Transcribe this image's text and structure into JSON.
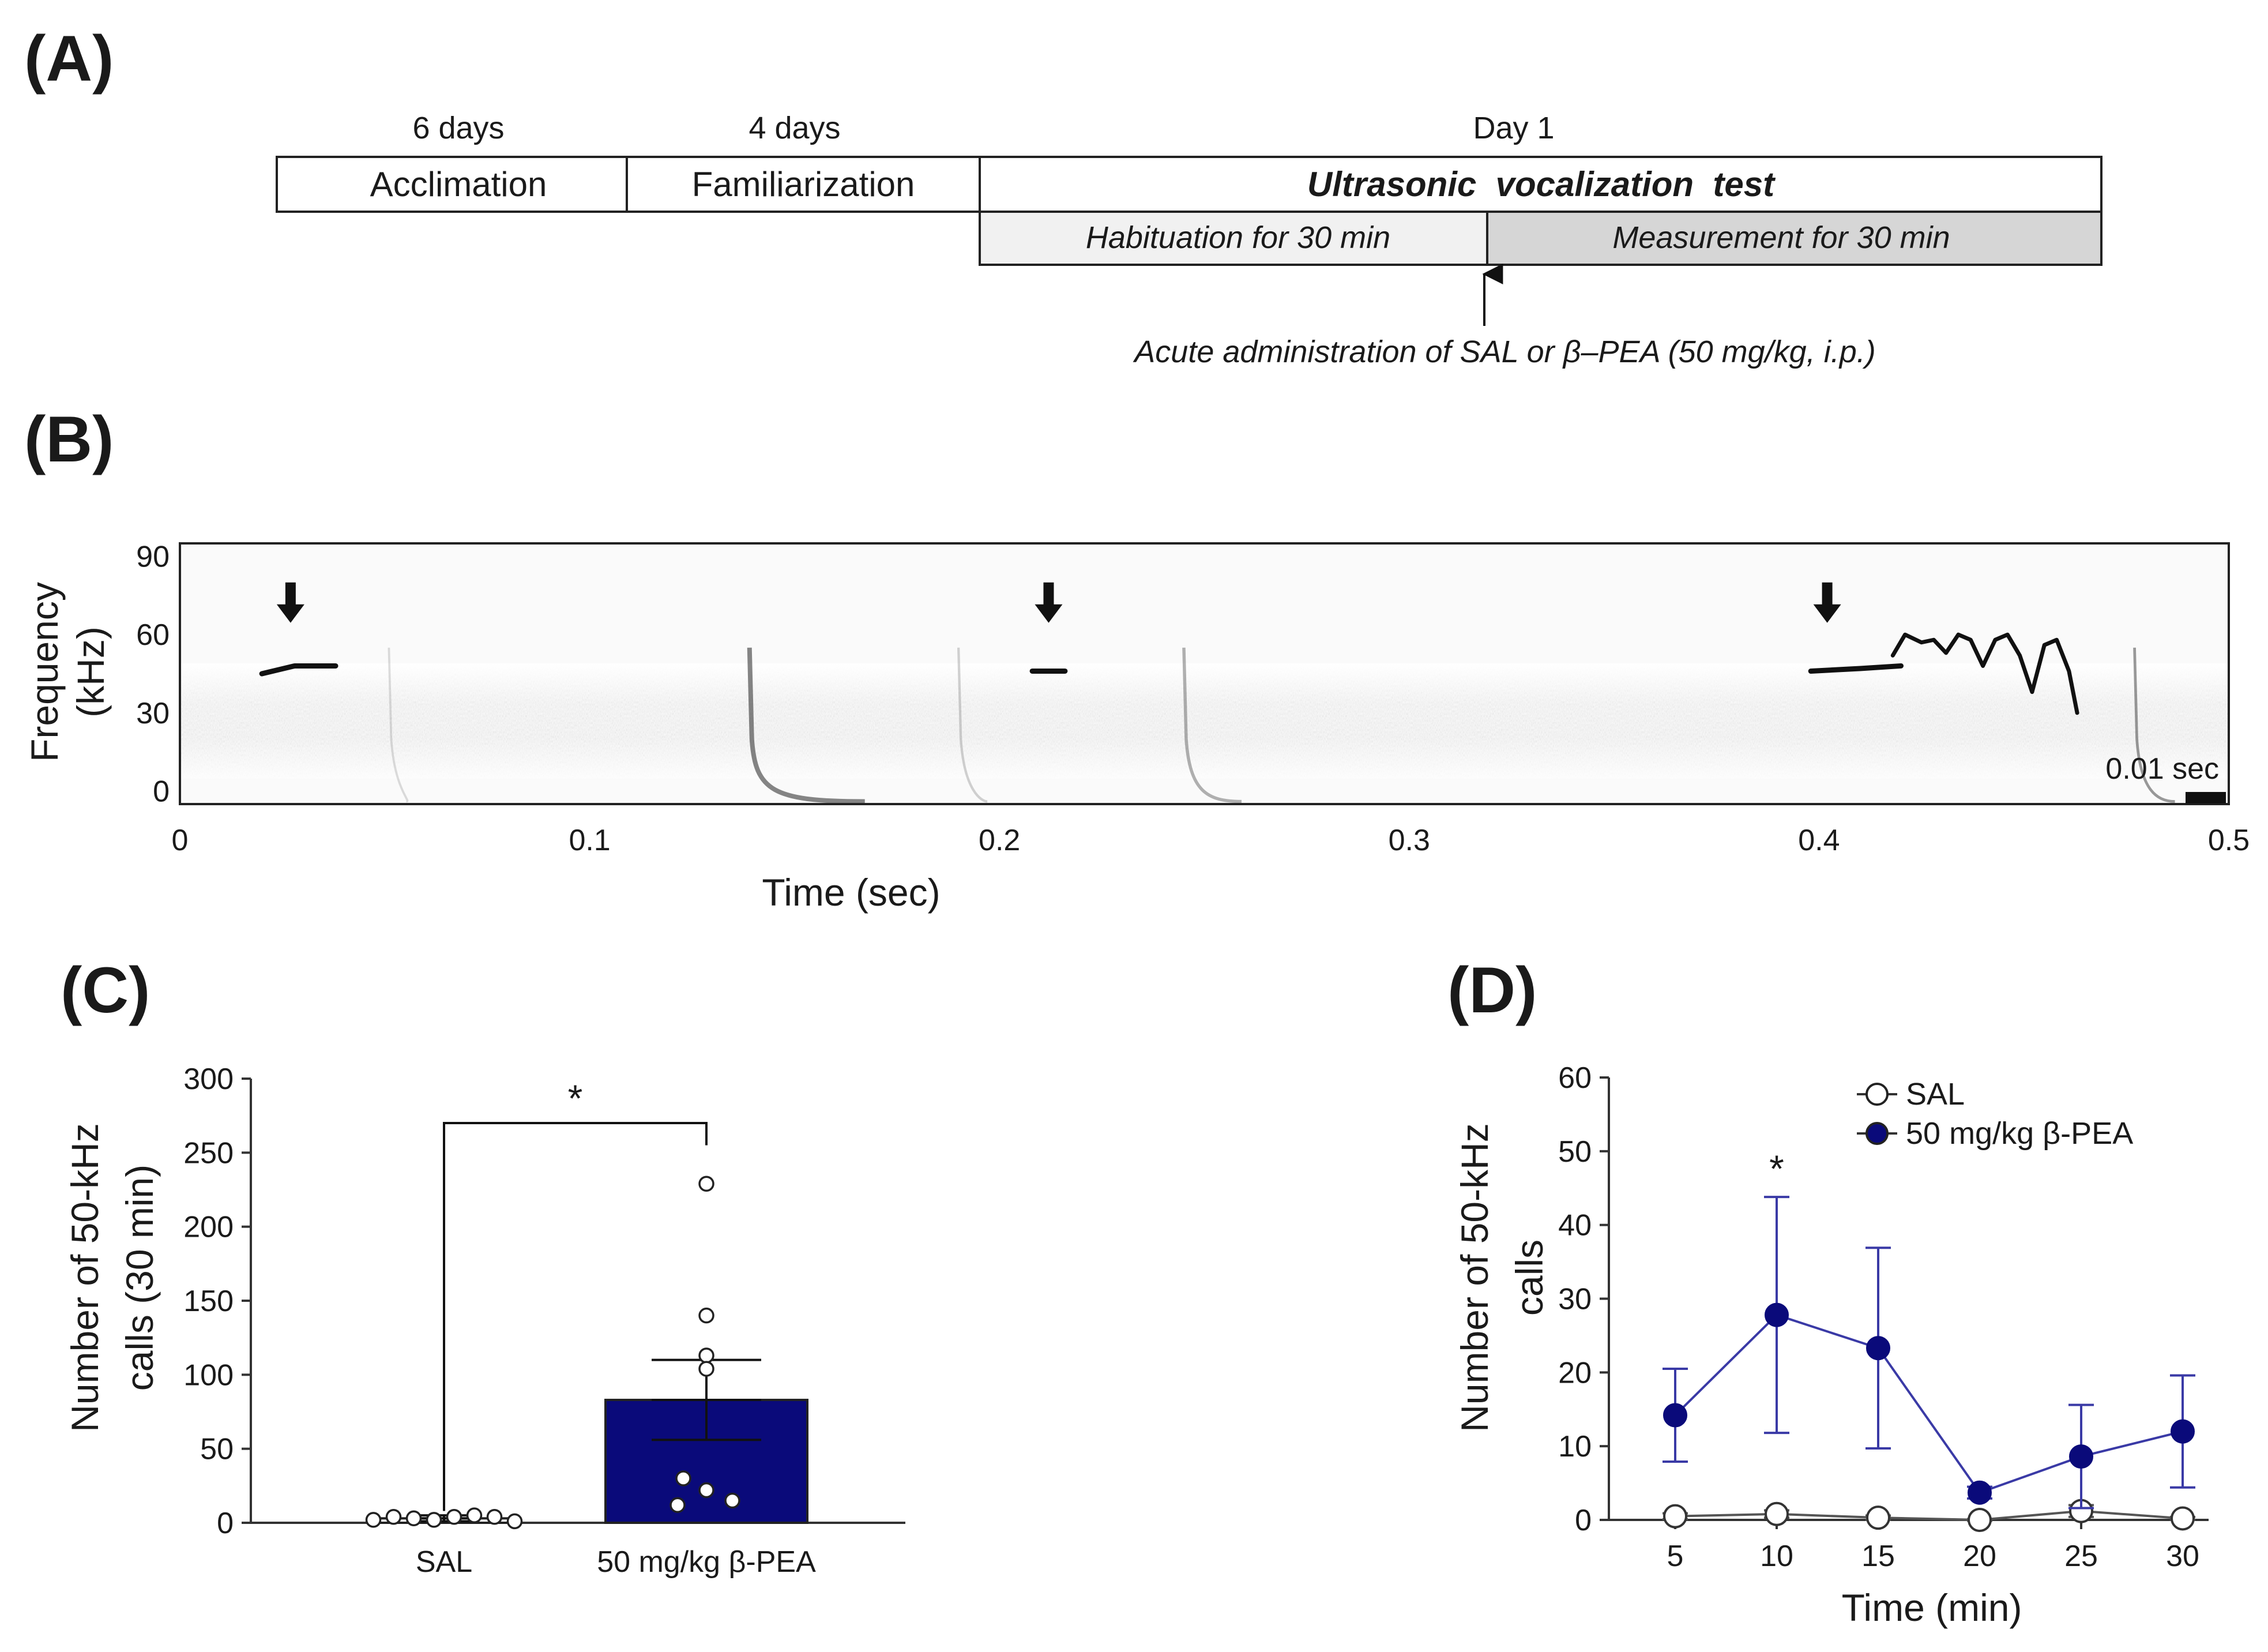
{
  "panels": {
    "A": "(A)",
    "B": "(B)",
    "C": "(C)",
    "D": "(D)"
  },
  "timeline": {
    "labels_top": [
      "6 days",
      "4 days",
      "Day 1"
    ],
    "boxes": [
      "Acclimation",
      "Familiarization",
      "Ultrasonic  vocalization  test"
    ],
    "sub_boxes": [
      "Habituation for 30 min",
      "Measurement for 30 min"
    ],
    "administration_note": "Acute administration of SAL or β–PEA (50 mg/kg, i.p.)"
  },
  "colors": {
    "navy": "#0a0a7a",
    "line_blue": "#3a3aa6",
    "measurement_fill": "#d6d6d6",
    "habituation_fill": "#f1f1f1"
  },
  "chart_data": [
    {
      "panel": "B",
      "type": "heatmap",
      "title": "",
      "xlabel": "Time (sec)",
      "ylabel_lines": [
        "Frequency",
        "(kHz)"
      ],
      "x_ticks": [
        0,
        0.1,
        0.2,
        0.3,
        0.4,
        0.5
      ],
      "y_ticks": [
        0,
        30,
        60,
        90
      ],
      "xlim": [
        0,
        0.5
      ],
      "ylim": [
        -5,
        95
      ],
      "call_arrows_at_sec": [
        0.027,
        0.212,
        0.402
      ],
      "calls": [
        {
          "t": [
            0.02,
            0.028,
            0.038
          ],
          "f": [
            45,
            48,
            48
          ]
        },
        {
          "t": [
            0.208,
            0.216
          ],
          "f": [
            46,
            46
          ]
        },
        {
          "t": [
            0.398,
            0.41,
            0.42
          ],
          "f": [
            46,
            47,
            48
          ]
        }
      ],
      "scale_bar_label": "0.01 sec"
    },
    {
      "panel": "C",
      "type": "bar",
      "categories": [
        "SAL",
        "50 mg/kg β-PEA"
      ],
      "values": [
        3,
        83
      ],
      "sem": [
        2,
        27
      ],
      "individual_points": [
        [
          2,
          4,
          3,
          2,
          4,
          5,
          4,
          1
        ],
        [
          229,
          140,
          113,
          104,
          30,
          22,
          15,
          12
        ]
      ],
      "xlabel": "",
      "ylabel_lines": [
        "Number of  50-kHz",
        "calls (30 min)"
      ],
      "ylim": [
        0,
        300
      ],
      "y_ticks": [
        0,
        50,
        100,
        150,
        200,
        250,
        300
      ],
      "significance": "*"
    },
    {
      "panel": "D",
      "type": "line",
      "x": [
        5,
        10,
        15,
        20,
        25,
        30
      ],
      "series": [
        {
          "name": "SAL",
          "values": [
            0.5,
            0.8,
            0.3,
            0.0,
            1.2,
            0.2
          ],
          "sem": [
            0.4,
            0.5,
            0.3,
            0.1,
            0.8,
            0.2
          ]
        },
        {
          "name": "50 mg/kg β-PEA",
          "values": [
            14.2,
            27.8,
            23.3,
            3.7,
            8.6,
            12.0
          ],
          "sem": [
            6.3,
            16.0,
            13.6,
            0.8,
            7.0,
            7.6
          ]
        }
      ],
      "xlabel": "Time (min)",
      "ylabel_lines": [
        "Number of  50-kHz",
        "calls"
      ],
      "ylim": [
        0,
        60
      ],
      "y_ticks": [
        0,
        10,
        20,
        30,
        40,
        50,
        60
      ],
      "significance": "*",
      "significance_at_x": 10
    }
  ]
}
